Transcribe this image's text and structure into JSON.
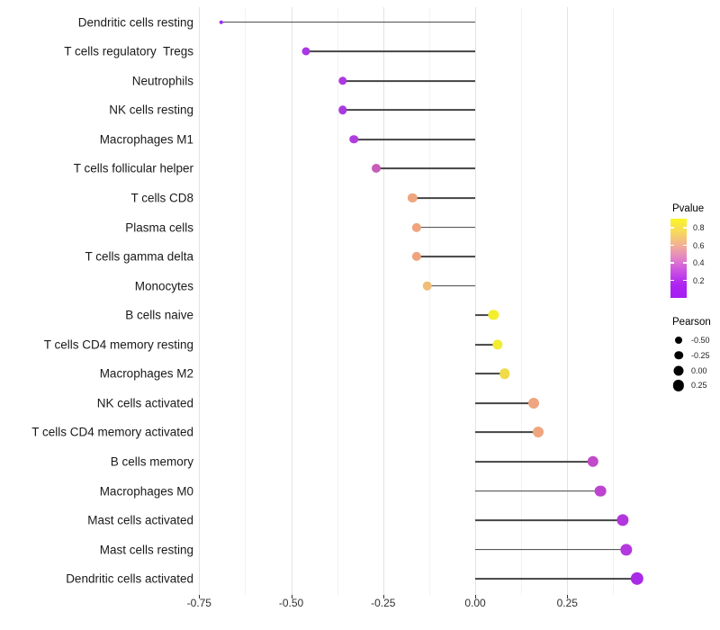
{
  "chart_data": {
    "type": "lollipop-dot-segment",
    "title": "",
    "xlabel": "",
    "ylabel": "",
    "xlim": [
      -0.75,
      0.495
    ],
    "grid": "vertical major + minor, light gray on white",
    "x_axis": {
      "tick_values": [
        -0.75,
        -0.5,
        -0.25,
        0,
        0.25
      ],
      "tick_labels": [
        "-0.75",
        "-0.50",
        "-0.25",
        "0.00",
        "0.25"
      ],
      "minor_tick_values": [
        -0.625,
        -0.375,
        -0.125,
        0.125,
        0.375
      ]
    },
    "rows": [
      {
        "label": "Dendritic cells resting",
        "pearson": -0.69,
        "dot_color": "#9a2cee",
        "dot_size": 4.5
      },
      {
        "label": "T cells regulatory  Tregs",
        "pearson": -0.46,
        "dot_color": "#ab36e3",
        "dot_size": 9.0
      },
      {
        "label": "Neutrophils",
        "pearson": -0.36,
        "dot_color": "#ac38e2",
        "dot_size": 9.5
      },
      {
        "label": "NK cells resting",
        "pearson": -0.36,
        "dot_color": "#ac38e2",
        "dot_size": 9.5
      },
      {
        "label": "Macrophages M1",
        "pearson": -0.33,
        "dot_color": "#b13cdf",
        "dot_size": 9.6
      },
      {
        "label": "T cells follicular helper",
        "pearson": -0.27,
        "dot_color": "#c75db8",
        "dot_size": 10.0
      },
      {
        "label": "T cells CD8",
        "pearson": -0.17,
        "dot_color": "#efa57f",
        "dot_size": 10.3
      },
      {
        "label": "Plasma cells",
        "pearson": -0.16,
        "dot_color": "#efa47e",
        "dot_size": 10.3
      },
      {
        "label": "T cells gamma delta",
        "pearson": -0.16,
        "dot_color": "#efa47e",
        "dot_size": 10.3
      },
      {
        "label": "Monocytes",
        "pearson": -0.13,
        "dot_color": "#f0be78",
        "dot_size": 10.6
      },
      {
        "label": "B cells naive",
        "pearson": 0.05,
        "dot_color": "#f3f02b",
        "dot_size": 11.2
      },
      {
        "label": "T cells CD4 memory resting",
        "pearson": 0.06,
        "dot_color": "#f2ec33",
        "dot_size": 11.3
      },
      {
        "label": "Macrophages M2",
        "pearson": 0.08,
        "dot_color": "#efdc48",
        "dot_size": 11.5
      },
      {
        "label": "NK cells activated",
        "pearson": 0.16,
        "dot_color": "#efa57f",
        "dot_size": 12.0
      },
      {
        "label": "T cells CD4 memory activated",
        "pearson": 0.17,
        "dot_color": "#efa67f",
        "dot_size": 12.0
      },
      {
        "label": "B cells memory",
        "pearson": 0.32,
        "dot_color": "#c24ac9",
        "dot_size": 12.4
      },
      {
        "label": "Macrophages M0",
        "pearson": 0.34,
        "dot_color": "#bd43d0",
        "dot_size": 12.7
      },
      {
        "label": "Mast cells activated",
        "pearson": 0.4,
        "dot_color": "#b136dc",
        "dot_size": 13.2
      },
      {
        "label": "Mast cells resting",
        "pearson": 0.41,
        "dot_color": "#b338df",
        "dot_size": 13.3
      },
      {
        "label": "Dendritic cells activated",
        "pearson": 0.44,
        "dot_color": "#a92be7",
        "dot_size": 14.3
      }
    ],
    "legend_pvalue": {
      "title": "Pvalue",
      "tick_values": [
        0.8,
        0.6,
        0.4,
        0.2
      ],
      "tick_labels": [
        "0.8",
        "0.6",
        "0.4",
        "0.2"
      ],
      "bar_top_value": 0.905,
      "bar_bottom_value": 0.0,
      "gradient_top_to_bottom": [
        "#fcf425",
        "#f7d95c",
        "#f2b193",
        "#e383c7",
        "#c94fe3",
        "#ae24f1",
        "#a41df4"
      ]
    },
    "legend_pearson": {
      "title": "Pearson",
      "items": [
        {
          "label": "-0.50",
          "size": 8.0
        },
        {
          "label": "-0.25",
          "size": 9.5
        },
        {
          "label": "0.00",
          "size": 11.0
        },
        {
          "label": "0.25",
          "size": 12.3
        }
      ]
    },
    "colors": {
      "background": "#ffffff",
      "stem": "#454545",
      "grid_major": "#e3e3e3",
      "grid_minor": "#f2f2f2",
      "axis_text": "#303030",
      "y_label_text": "#1a1a1a"
    }
  }
}
